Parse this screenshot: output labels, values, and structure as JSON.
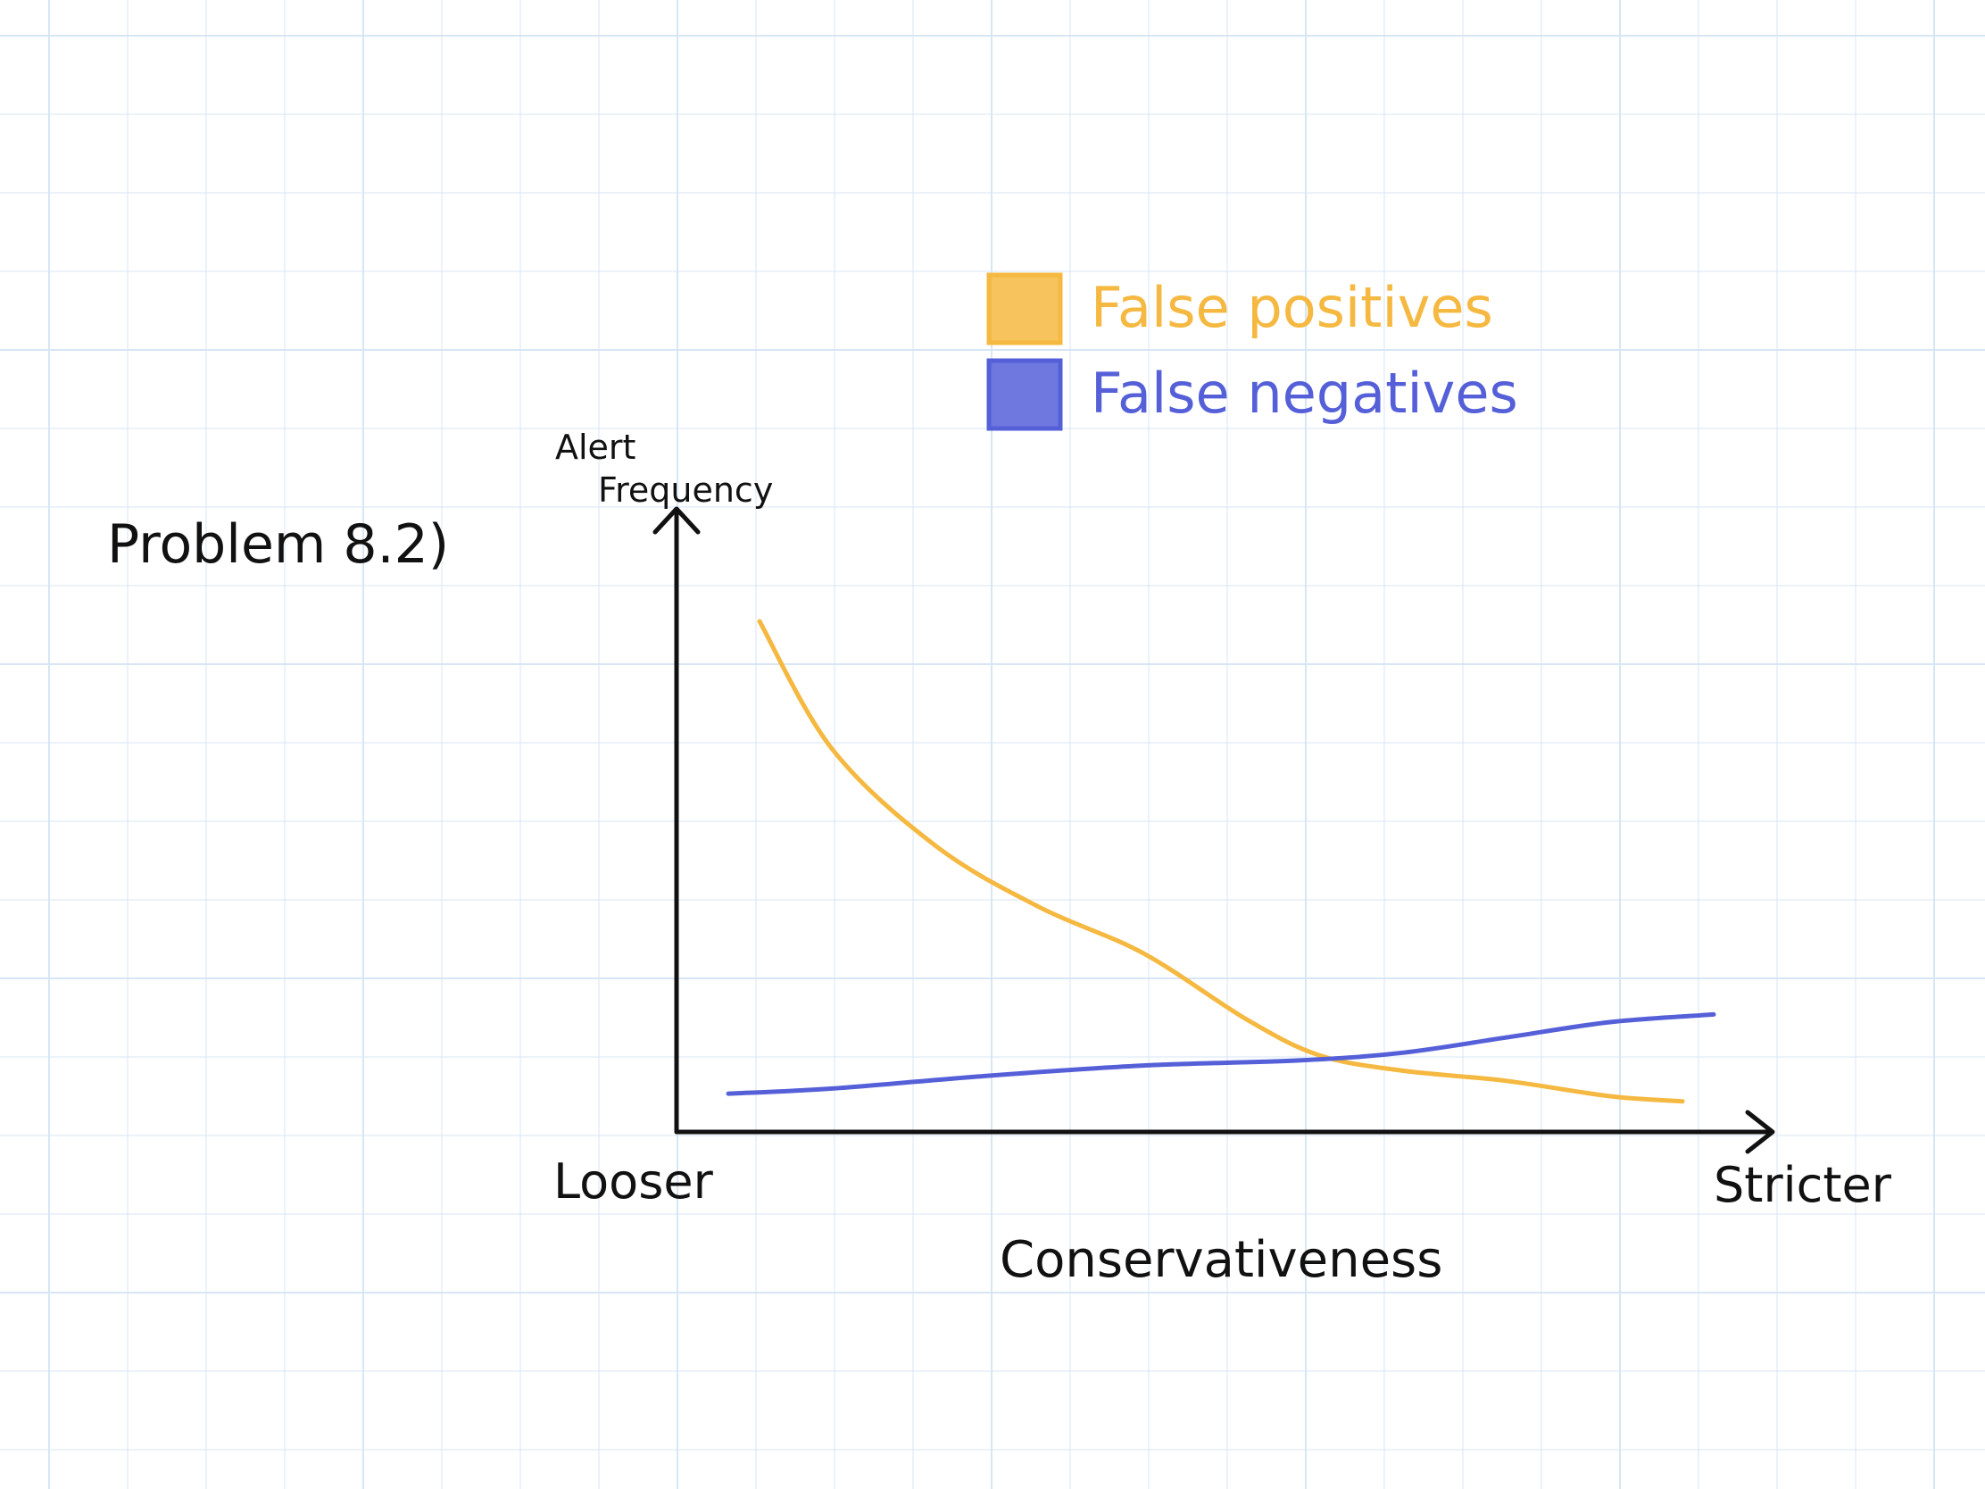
{
  "title": "Problem 8.2)",
  "colors": {
    "background": "#ffffff",
    "grid": "#d7e6f4",
    "ink": "#111111",
    "false_positives": "#f5b840",
    "false_negatives": "#5560d8"
  },
  "chart_data": {
    "type": "line",
    "xlabel": "Conservativeness",
    "ylabel": "Alert Frequency",
    "x_start_label": "Looser",
    "x_end_label": "Stricter",
    "xlim": [
      0,
      100
    ],
    "ylim": [
      0,
      100
    ],
    "grid": true,
    "legend_position": "top",
    "series": [
      {
        "name": "False positives",
        "color": "#f5b840",
        "x": [
          8,
          15,
          25,
          35,
          45,
          55,
          62,
          70,
          80,
          90,
          97
        ],
        "y": [
          100,
          75,
          56,
          44,
          35,
          22,
          15,
          12,
          10,
          7,
          6
        ]
      },
      {
        "name": "False negatives",
        "color": "#5560d8",
        "x": [
          5,
          15,
          30,
          45,
          60,
          70,
          80,
          90,
          100
        ],
        "y": [
          7.5,
          8.5,
          11,
          13,
          14,
          15.5,
          18.5,
          21.5,
          23
        ]
      }
    ]
  }
}
